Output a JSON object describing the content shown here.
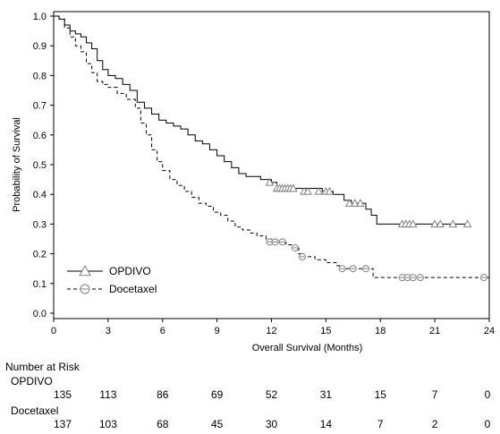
{
  "chart_data": {
    "type": "line",
    "subtype": "kaplan-meier",
    "xlabel": "Overall Survival (Months)",
    "ylabel": "Probability of Survival",
    "xlim": [
      0,
      24
    ],
    "ylim": [
      0,
      1.0
    ],
    "x_ticks": [
      "0",
      "3",
      "6",
      "9",
      "12",
      "15",
      "18",
      "21",
      "24"
    ],
    "y_ticks": [
      "0.0",
      "0.1",
      "0.2",
      "0.3",
      "0.4",
      "0.5",
      "0.6",
      "0.7",
      "0.8",
      "0.9",
      "1.0"
    ],
    "grid": false,
    "legend_position": "lower-left",
    "series": [
      {
        "name": "OPDIVO",
        "line_style": "solid",
        "marker": "triangle",
        "points": [
          [
            0,
            1.0
          ],
          [
            0.3,
            0.99
          ],
          [
            0.6,
            0.97
          ],
          [
            0.9,
            0.95
          ],
          [
            1.2,
            0.94
          ],
          [
            1.5,
            0.93
          ],
          [
            1.8,
            0.91
          ],
          [
            2.1,
            0.89
          ],
          [
            2.4,
            0.85
          ],
          [
            2.7,
            0.82
          ],
          [
            3.0,
            0.8
          ],
          [
            3.4,
            0.79
          ],
          [
            3.8,
            0.77
          ],
          [
            4.2,
            0.75
          ],
          [
            4.6,
            0.71
          ],
          [
            5.0,
            0.69
          ],
          [
            5.4,
            0.67
          ],
          [
            5.8,
            0.65
          ],
          [
            6.2,
            0.64
          ],
          [
            6.6,
            0.63
          ],
          [
            7.0,
            0.62
          ],
          [
            7.4,
            0.6
          ],
          [
            7.8,
            0.58
          ],
          [
            8.2,
            0.57
          ],
          [
            8.6,
            0.55
          ],
          [
            9.0,
            0.53
          ],
          [
            9.4,
            0.51
          ],
          [
            9.8,
            0.49
          ],
          [
            10.2,
            0.47
          ],
          [
            10.6,
            0.46
          ],
          [
            11.4,
            0.45
          ],
          [
            12.0,
            0.44
          ],
          [
            12.3,
            0.42
          ],
          [
            14.8,
            0.41
          ],
          [
            15.4,
            0.4
          ],
          [
            16.0,
            0.38
          ],
          [
            16.4,
            0.37
          ],
          [
            17.2,
            0.35
          ],
          [
            17.5,
            0.33
          ],
          [
            17.8,
            0.3
          ],
          [
            22.8,
            0.3
          ]
        ],
        "censored": [
          [
            11.9,
            0.44
          ],
          [
            12.3,
            0.42
          ],
          [
            12.45,
            0.42
          ],
          [
            12.6,
            0.42
          ],
          [
            12.75,
            0.42
          ],
          [
            12.9,
            0.42
          ],
          [
            13.05,
            0.42
          ],
          [
            13.2,
            0.42
          ],
          [
            13.8,
            0.41
          ],
          [
            14.0,
            0.41
          ],
          [
            14.6,
            0.41
          ],
          [
            15.0,
            0.41
          ],
          [
            15.2,
            0.41
          ],
          [
            16.3,
            0.37
          ],
          [
            16.6,
            0.37
          ],
          [
            16.9,
            0.37
          ],
          [
            19.2,
            0.3
          ],
          [
            19.4,
            0.3
          ],
          [
            19.6,
            0.3
          ],
          [
            19.8,
            0.3
          ],
          [
            21.0,
            0.3
          ],
          [
            21.3,
            0.3
          ],
          [
            22.0,
            0.3
          ],
          [
            22.8,
            0.3
          ]
        ]
      },
      {
        "name": "Docetaxel",
        "line_style": "dashed",
        "marker": "circle",
        "points": [
          [
            0,
            1.0
          ],
          [
            0.3,
            0.99
          ],
          [
            0.6,
            0.96
          ],
          [
            0.9,
            0.93
          ],
          [
            1.2,
            0.9
          ],
          [
            1.5,
            0.88
          ],
          [
            1.8,
            0.84
          ],
          [
            2.1,
            0.81
          ],
          [
            2.4,
            0.78
          ],
          [
            2.7,
            0.77
          ],
          [
            3.0,
            0.76
          ],
          [
            3.5,
            0.74
          ],
          [
            4.0,
            0.72
          ],
          [
            4.5,
            0.69
          ],
          [
            4.8,
            0.64
          ],
          [
            5.1,
            0.6
          ],
          [
            5.4,
            0.55
          ],
          [
            5.7,
            0.51
          ],
          [
            6.0,
            0.48
          ],
          [
            6.4,
            0.45
          ],
          [
            6.8,
            0.43
          ],
          [
            7.2,
            0.41
          ],
          [
            7.6,
            0.39
          ],
          [
            8.0,
            0.37
          ],
          [
            8.4,
            0.36
          ],
          [
            8.8,
            0.34
          ],
          [
            9.2,
            0.33
          ],
          [
            9.6,
            0.31
          ],
          [
            10.0,
            0.29
          ],
          [
            10.4,
            0.28
          ],
          [
            10.8,
            0.27
          ],
          [
            11.2,
            0.26
          ],
          [
            11.7,
            0.25
          ],
          [
            12.0,
            0.24
          ],
          [
            12.8,
            0.23
          ],
          [
            13.2,
            0.22
          ],
          [
            13.5,
            0.2
          ],
          [
            13.8,
            0.19
          ],
          [
            14.4,
            0.18
          ],
          [
            15.0,
            0.17
          ],
          [
            15.6,
            0.16
          ],
          [
            15.9,
            0.15
          ],
          [
            17.5,
            0.15
          ],
          [
            17.6,
            0.12
          ],
          [
            24.0,
            0.12
          ]
        ],
        "censored": [
          [
            11.9,
            0.24
          ],
          [
            12.2,
            0.24
          ],
          [
            12.6,
            0.24
          ],
          [
            13.3,
            0.22
          ],
          [
            13.7,
            0.19
          ],
          [
            15.9,
            0.15
          ],
          [
            16.5,
            0.15
          ],
          [
            17.2,
            0.15
          ],
          [
            19.2,
            0.12
          ],
          [
            19.5,
            0.12
          ],
          [
            19.8,
            0.12
          ],
          [
            20.2,
            0.12
          ],
          [
            23.7,
            0.12
          ]
        ]
      }
    ],
    "risk_table": {
      "title": "Number at Risk",
      "times": [
        0,
        3,
        6,
        9,
        12,
        15,
        18,
        21,
        24
      ],
      "rows": [
        {
          "label": "OPDIVO",
          "values": [
            "135",
            "113",
            "86",
            "69",
            "52",
            "31",
            "15",
            "7",
            "0"
          ]
        },
        {
          "label": "Docetaxel",
          "values": [
            "137",
            "103",
            "68",
            "45",
            "30",
            "14",
            "7",
            "2",
            "0"
          ]
        }
      ]
    },
    "colors": {
      "line": "#000000",
      "censor_marker": "#808080"
    }
  }
}
